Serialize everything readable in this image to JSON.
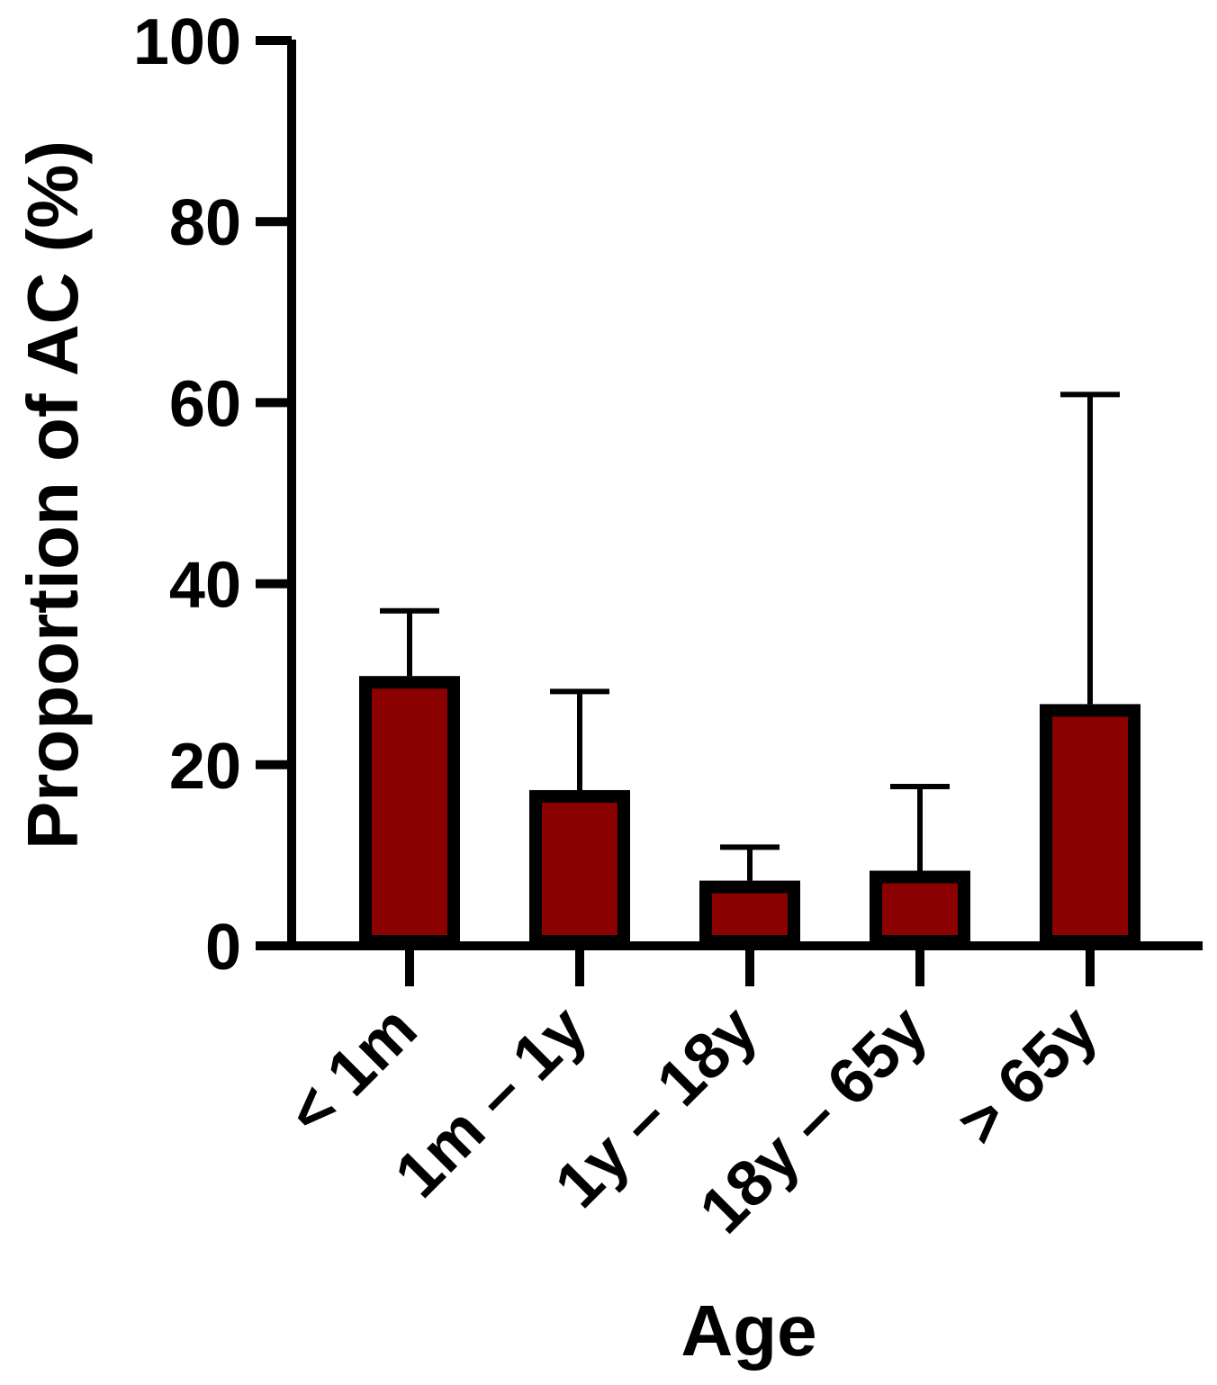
{
  "chart_data": {
    "type": "bar",
    "title": "",
    "xlabel": "Age",
    "ylabel": "Proportion of AC (%)",
    "categories": [
      "< 1m",
      "1m – 1y",
      "1y – 18y",
      "18y – 65y",
      "> 65y"
    ],
    "values": [
      29.8,
      17.2,
      7.2,
      8.3,
      26.7
    ],
    "error_upper": [
      37.0,
      28.1,
      10.9,
      17.6,
      60.9
    ],
    "ylim": [
      0,
      100
    ],
    "yticks": [
      "0",
      "20",
      "40",
      "60",
      "80",
      "100"
    ],
    "ytick_values": [
      0,
      20,
      40,
      60,
      80,
      100
    ],
    "grid": false,
    "legend": "none",
    "colors": {
      "bar_fill": "#8b0000",
      "bar_edge": "#000000",
      "axis": "#000000"
    }
  }
}
